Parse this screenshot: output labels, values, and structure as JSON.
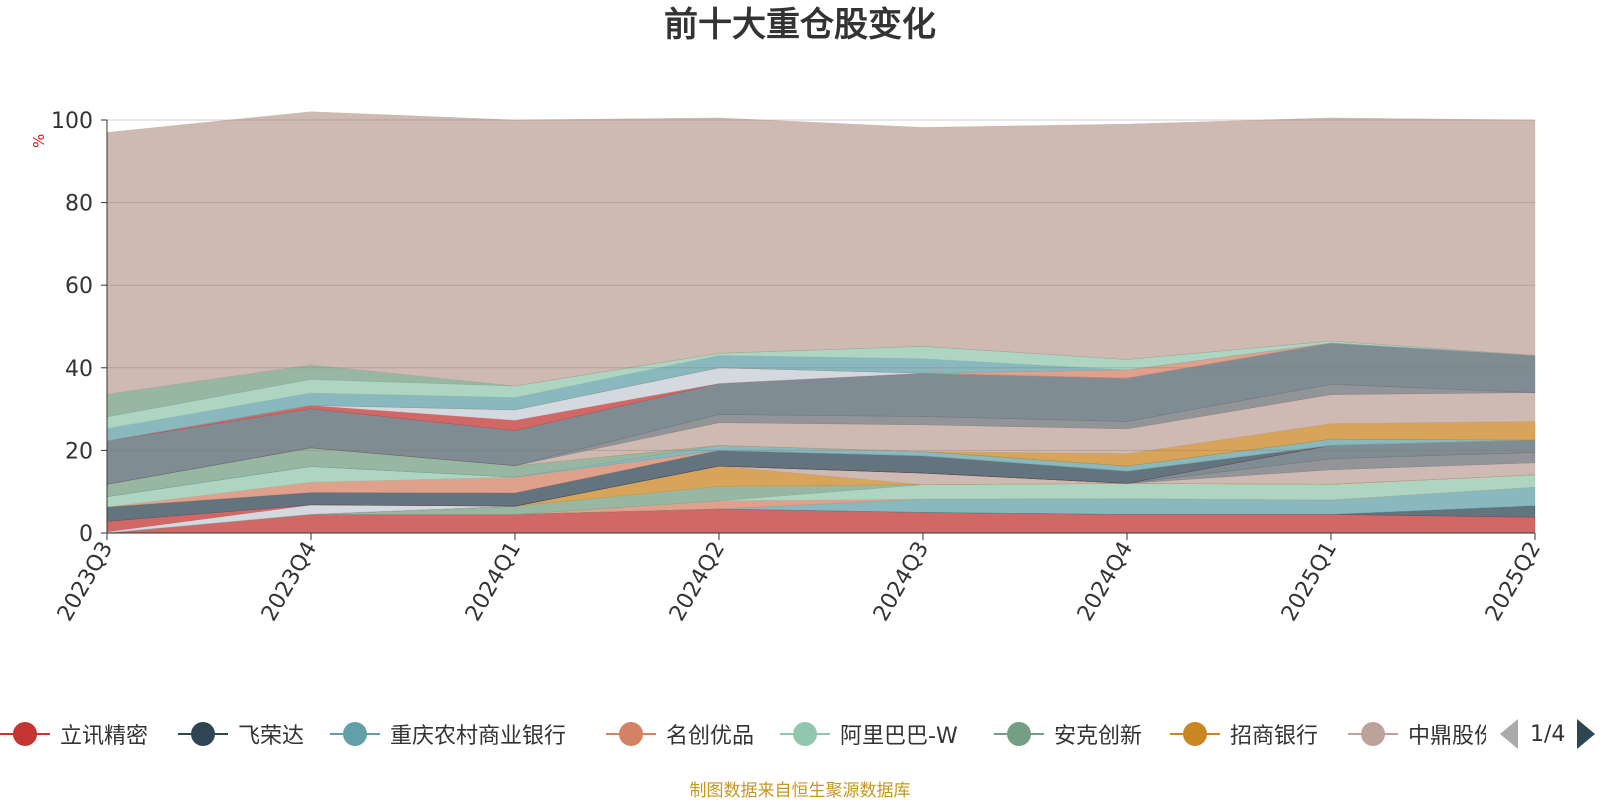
{
  "title": "前十大重仓股变化",
  "source_note": "制图数据来自恒生聚源数据库",
  "legend_pager": {
    "page_text": "1/4",
    "prev_icon": "triangle-left-icon",
    "next_icon": "triangle-right-icon"
  },
  "chart_data": {
    "type": "area",
    "stacked": true,
    "title": "前十大重仓股变化",
    "ylabel": "%",
    "ylim": [
      0,
      100
    ],
    "yticks": [
      0,
      20,
      40,
      60,
      80,
      100
    ],
    "grid": true,
    "legend_position": "bottom",
    "categories": [
      "2023Q3",
      "2023Q4",
      "2024Q1",
      "2024Q2",
      "2024Q3",
      "2024Q4",
      "2025Q1",
      "2025Q2"
    ],
    "series": [
      {
        "name": "立讯精密",
        "color": "#c23531",
        "values": [
          0,
          4.5,
          4.5,
          5.8,
          5.0,
          4.5,
          4.5,
          3.8
        ]
      },
      {
        "name": "飞荣达",
        "color": "#2f4554",
        "values": [
          0,
          0,
          0,
          0,
          0,
          0,
          0,
          2.8
        ]
      },
      {
        "name": "重庆农村商业银行",
        "color": "#61a0a8",
        "values": [
          0,
          0,
          0,
          0,
          3.2,
          3.8,
          3.5,
          4.5
        ]
      },
      {
        "name": "名创优品",
        "color": "#d48265",
        "values": [
          0,
          0,
          0,
          2.0,
          0,
          0,
          0,
          0
        ]
      },
      {
        "name": "阿里巴巴-W",
        "color": "#91c7ae",
        "values": [
          0,
          0,
          0,
          0,
          3.5,
          3.7,
          3.8,
          3.0
        ]
      },
      {
        "name": "安克创新",
        "color": "#749f83",
        "values": [
          0,
          0,
          2.0,
          3.5,
          0,
          0,
          0,
          0
        ]
      },
      {
        "name": "招商银行",
        "color": "#ca8622",
        "values": [
          0,
          0,
          0,
          4.9,
          0,
          0,
          0,
          0
        ]
      },
      {
        "name": "中鼎股份",
        "color": "#bda29a",
        "values": [
          0,
          0,
          0,
          0,
          2.8,
          0,
          3.5,
          2.9
        ]
      },
      {
        "name": "",
        "color": "#6e7074",
        "values": [
          0,
          0,
          0,
          0,
          0,
          0,
          2.7,
          2.5
        ]
      },
      {
        "name": "",
        "color": "#546570",
        "values": [
          0,
          0,
          0,
          0,
          0,
          0,
          3.2,
          3.0
        ]
      },
      {
        "name": "",
        "color": "#c4ccd3",
        "values": [
          0.3,
          2.3,
          0,
          0,
          0,
          0,
          0,
          0
        ]
      },
      {
        "name": "",
        "color": "#c23531",
        "values": [
          2.5,
          0,
          0,
          0,
          0,
          0,
          0,
          0
        ]
      },
      {
        "name": "",
        "color": "#2f4554",
        "values": [
          3.5,
          3.0,
          3.2,
          3.8,
          4.2,
          3.0,
          0,
          0
        ]
      },
      {
        "name": "",
        "color": "#d48265",
        "values": [
          0,
          2.5,
          3.8,
          0,
          0,
          0,
          0,
          0
        ]
      },
      {
        "name": "",
        "color": "#91c7ae",
        "values": [
          2.5,
          3.8,
          0,
          0,
          0,
          0,
          0,
          0
        ]
      },
      {
        "name": "",
        "color": "#61a0a8",
        "values": [
          0,
          0,
          0,
          1.2,
          1.0,
          1.2,
          1.5,
          0
        ]
      },
      {
        "name": "",
        "color": "#749f83",
        "values": [
          3.0,
          4.5,
          2.8,
          0,
          0,
          0,
          0,
          0
        ]
      },
      {
        "name": "",
        "color": "#ca8622",
        "values": [
          0,
          0,
          0,
          0,
          0,
          3.0,
          3.8,
          4.5
        ]
      },
      {
        "name": "",
        "color": "#bda29a",
        "values": [
          0,
          0,
          0,
          5.5,
          6.5,
          6.0,
          7.0,
          7.0
        ]
      },
      {
        "name": "",
        "color": "#6e7074",
        "values": [
          0,
          0,
          0,
          2.0,
          2.0,
          1.8,
          2.5,
          0
        ]
      },
      {
        "name": "",
        "color": "#546570",
        "values": [
          10.5,
          9.5,
          8.5,
          7.5,
          10.5,
          10.5,
          10.0,
          9.0
        ]
      },
      {
        "name": "",
        "color": "#c23531",
        "values": [
          0,
          0.8,
          2.5,
          0,
          0,
          0,
          0,
          0
        ]
      },
      {
        "name": "",
        "color": "#c4ccd3",
        "values": [
          0,
          0,
          2.5,
          3.8,
          0,
          0,
          0,
          0
        ]
      },
      {
        "name": "",
        "color": "#d48265",
        "values": [
          0,
          0,
          0,
          0,
          0,
          2.0,
          0,
          0
        ]
      },
      {
        "name": "",
        "color": "#61a0a8",
        "values": [
          3.0,
          3.0,
          3.0,
          3.0,
          3.5,
          0,
          0,
          0
        ]
      },
      {
        "name": "",
        "color": "#91c7ae",
        "values": [
          2.8,
          3.3,
          2.8,
          0.5,
          3.0,
          2.5,
          0.5,
          0
        ]
      },
      {
        "name": "",
        "color": "#749f83",
        "values": [
          5.5,
          3.5,
          0,
          0,
          0,
          0,
          0,
          0
        ]
      },
      {
        "name": "",
        "color": "#bda29a",
        "values": [
          63.4,
          61.3,
          64.4,
          57.0,
          53.0,
          57.0,
          54.0,
          57.0
        ]
      }
    ]
  }
}
